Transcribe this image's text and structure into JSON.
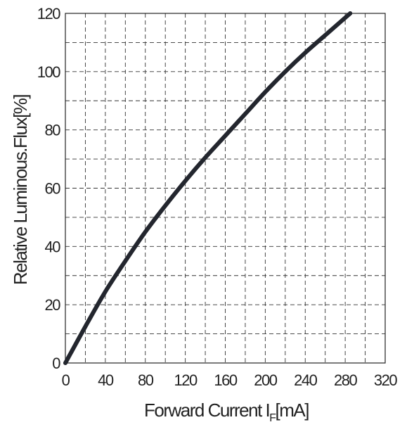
{
  "chart_data": {
    "type": "line",
    "title": "",
    "xlabel_main": "Forward Current I",
    "xlabel_sub": "F",
    "xlabel_unit": "[mA]",
    "ylabel": "Relative Luminous.Flux[%]",
    "xlim": [
      0,
      320
    ],
    "ylim": [
      0,
      120
    ],
    "x_ticks": [
      "0",
      "40",
      "80",
      "120",
      "160",
      "200",
      "240",
      "280",
      "320"
    ],
    "y_ticks": [
      "0",
      "20",
      "40",
      "60",
      "80",
      "100",
      "120"
    ],
    "grid": true,
    "series": [
      {
        "color": "#23262e",
        "x": [
          0,
          20,
          40,
          60,
          80,
          100,
          120,
          140,
          160,
          180,
          200,
          220,
          240,
          260,
          285
        ],
        "y": [
          0,
          12.5,
          24.5,
          35,
          45,
          54,
          62.5,
          70.5,
          78,
          85.5,
          93,
          100,
          106.5,
          112.5,
          120
        ]
      }
    ]
  }
}
